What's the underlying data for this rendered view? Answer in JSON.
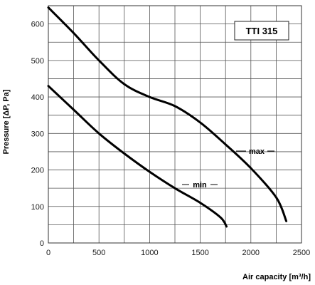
{
  "chart_data": {
    "type": "line",
    "model_label": "TTI 315",
    "xlabel": "Air capacity [m³/h]",
    "ylabel": "Pressure [ΔP, Pa]",
    "xlim": [
      0,
      2500
    ],
    "ylim": [
      0,
      650
    ],
    "x_ticks": [
      0,
      500,
      1000,
      1500,
      2000,
      2500
    ],
    "y_ticks": [
      0,
      100,
      200,
      300,
      400,
      500,
      600
    ],
    "grid": true,
    "series": [
      {
        "name": "max",
        "points": [
          [
            0,
            645
          ],
          [
            250,
            575
          ],
          [
            500,
            500
          ],
          [
            750,
            435
          ],
          [
            1000,
            400
          ],
          [
            1250,
            375
          ],
          [
            1500,
            330
          ],
          [
            1750,
            270
          ],
          [
            2000,
            205
          ],
          [
            2250,
            125
          ],
          [
            2350,
            60
          ]
        ]
      },
      {
        "name": "min",
        "points": [
          [
            0,
            430
          ],
          [
            250,
            365
          ],
          [
            500,
            300
          ],
          [
            750,
            245
          ],
          [
            1000,
            195
          ],
          [
            1250,
            150
          ],
          [
            1500,
            110
          ],
          [
            1700,
            70
          ],
          [
            1760,
            45
          ]
        ]
      }
    ],
    "colors": {
      "curve": "#000000",
      "grid": "#555555"
    }
  }
}
